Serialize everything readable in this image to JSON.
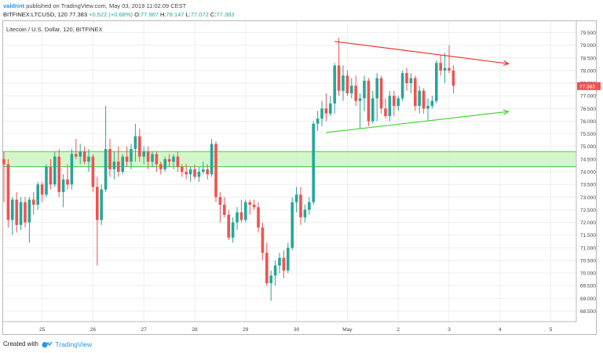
{
  "header": {
    "user": "valdrint",
    "published": "published on TradingView.com, May 03, 2019 11:02:09 CEST",
    "symbol": "BITFINEX:LTCUSD, 120",
    "last": "77.383",
    "change": "+0.522 (+0.68%)",
    "o_label": "O:",
    "o_val": "77.967",
    "h_label": "H:",
    "h_val": "78.147",
    "l_label": "L:",
    "l_val": "77.072",
    "c_label": "C:",
    "c_val": "77.383"
  },
  "footer": {
    "created_with": "Created with",
    "brand": "TradingView"
  },
  "colors": {
    "up": "#26a69a",
    "down": "#ef5350",
    "zone_fill": "#ccf5c2",
    "zone_line": "#2ecc40",
    "red_trend": "#f2352d",
    "green_trend": "#44d62c",
    "price_tag": "#ef5350"
  },
  "chart_data": {
    "type": "candlestick",
    "title": "Litecoin / U.S. Dollar, 120, BITFINEX",
    "x_ticks": [
      "25",
      "26",
      "27",
      "28",
      "29",
      "30",
      "May",
      "2",
      "3",
      "4",
      "5"
    ],
    "y_ticks": [
      "79.500",
      "79.000",
      "78.500",
      "78.000",
      "77.500",
      "77.000",
      "76.500",
      "76.000",
      "75.500",
      "75.000",
      "74.500",
      "74.000",
      "73.500",
      "73.000",
      "72.500",
      "72.000",
      "71.500",
      "71.000",
      "70.500",
      "70.000",
      "69.500",
      "69.000",
      "68.500"
    ],
    "ylim": [
      68.5,
      79.5
    ],
    "last_price": "77.383",
    "support_zone": [
      74.2,
      74.8
    ],
    "candles": [
      {
        "o": 74.5,
        "h": 74.8,
        "l": 72.8,
        "c": 74.3
      },
      {
        "o": 74.3,
        "h": 74.5,
        "l": 71.8,
        "c": 72.1
      },
      {
        "o": 72.1,
        "h": 73.0,
        "l": 71.5,
        "c": 72.9
      },
      {
        "o": 72.9,
        "h": 73.2,
        "l": 71.6,
        "c": 71.9
      },
      {
        "o": 71.9,
        "h": 73.0,
        "l": 71.7,
        "c": 72.8
      },
      {
        "o": 72.8,
        "h": 73.0,
        "l": 71.8,
        "c": 72.0
      },
      {
        "o": 72.0,
        "h": 73.0,
        "l": 71.2,
        "c": 72.9
      },
      {
        "o": 72.9,
        "h": 73.2,
        "l": 72.3,
        "c": 72.7
      },
      {
        "o": 72.7,
        "h": 73.6,
        "l": 72.5,
        "c": 73.5
      },
      {
        "o": 73.5,
        "h": 73.6,
        "l": 72.8,
        "c": 73.1
      },
      {
        "o": 73.1,
        "h": 74.3,
        "l": 73.0,
        "c": 74.2
      },
      {
        "o": 74.2,
        "h": 74.5,
        "l": 73.3,
        "c": 73.5
      },
      {
        "o": 73.5,
        "h": 74.8,
        "l": 73.4,
        "c": 74.6
      },
      {
        "o": 74.6,
        "h": 74.9,
        "l": 73.0,
        "c": 73.2
      },
      {
        "o": 73.2,
        "h": 73.9,
        "l": 72.6,
        "c": 73.7
      },
      {
        "o": 73.7,
        "h": 74.3,
        "l": 73.3,
        "c": 73.5
      },
      {
        "o": 73.5,
        "h": 74.9,
        "l": 73.3,
        "c": 74.7
      },
      {
        "o": 74.7,
        "h": 75.3,
        "l": 74.5,
        "c": 74.6
      },
      {
        "o": 74.6,
        "h": 75.1,
        "l": 74.3,
        "c": 74.8
      },
      {
        "o": 74.8,
        "h": 75.0,
        "l": 74.3,
        "c": 74.4
      },
      {
        "o": 74.4,
        "h": 74.9,
        "l": 74.0,
        "c": 74.6
      },
      {
        "o": 74.6,
        "h": 74.7,
        "l": 73.2,
        "c": 73.4
      },
      {
        "o": 73.4,
        "h": 73.8,
        "l": 70.3,
        "c": 72.1
      },
      {
        "o": 72.1,
        "h": 73.5,
        "l": 71.9,
        "c": 73.3
      },
      {
        "o": 73.3,
        "h": 76.6,
        "l": 73.2,
        "c": 74.9
      },
      {
        "o": 74.9,
        "h": 75.3,
        "l": 73.8,
        "c": 74.1
      },
      {
        "o": 74.1,
        "h": 74.8,
        "l": 73.7,
        "c": 74.4
      },
      {
        "o": 74.4,
        "h": 75.0,
        "l": 73.8,
        "c": 74.0
      },
      {
        "o": 74.0,
        "h": 74.7,
        "l": 73.9,
        "c": 74.6
      },
      {
        "o": 74.6,
        "h": 75.0,
        "l": 74.2,
        "c": 74.4
      },
      {
        "o": 74.4,
        "h": 75.1,
        "l": 74.1,
        "c": 74.9
      },
      {
        "o": 74.9,
        "h": 75.9,
        "l": 74.4,
        "c": 75.4
      },
      {
        "o": 75.4,
        "h": 75.7,
        "l": 74.4,
        "c": 74.6
      },
      {
        "o": 74.6,
        "h": 75.0,
        "l": 74.3,
        "c": 74.8
      },
      {
        "o": 74.8,
        "h": 75.0,
        "l": 74.1,
        "c": 74.4
      },
      {
        "o": 74.4,
        "h": 74.8,
        "l": 74.2,
        "c": 74.7
      },
      {
        "o": 74.7,
        "h": 74.8,
        "l": 74.0,
        "c": 74.3
      },
      {
        "o": 74.3,
        "h": 74.4,
        "l": 73.9,
        "c": 74.1
      },
      {
        "o": 74.1,
        "h": 74.6,
        "l": 74.0,
        "c": 74.5
      },
      {
        "o": 74.5,
        "h": 74.7,
        "l": 74.2,
        "c": 74.4
      },
      {
        "o": 74.4,
        "h": 74.7,
        "l": 74.1,
        "c": 74.6
      },
      {
        "o": 74.6,
        "h": 74.8,
        "l": 74.0,
        "c": 74.2
      },
      {
        "o": 74.2,
        "h": 74.3,
        "l": 73.8,
        "c": 74.0
      },
      {
        "o": 74.0,
        "h": 74.3,
        "l": 73.7,
        "c": 73.9
      },
      {
        "o": 73.9,
        "h": 74.2,
        "l": 73.6,
        "c": 74.1
      },
      {
        "o": 74.1,
        "h": 74.3,
        "l": 73.7,
        "c": 73.8
      },
      {
        "o": 73.8,
        "h": 74.2,
        "l": 73.6,
        "c": 74.0
      },
      {
        "o": 74.0,
        "h": 74.4,
        "l": 73.9,
        "c": 74.1
      },
      {
        "o": 74.1,
        "h": 74.3,
        "l": 73.7,
        "c": 73.9
      },
      {
        "o": 73.9,
        "h": 75.3,
        "l": 73.8,
        "c": 75.1
      },
      {
        "o": 75.1,
        "h": 75.2,
        "l": 72.8,
        "c": 73.0
      },
      {
        "o": 73.0,
        "h": 73.2,
        "l": 72.0,
        "c": 72.7
      },
      {
        "o": 72.7,
        "h": 73.0,
        "l": 72.2,
        "c": 72.3
      },
      {
        "o": 72.3,
        "h": 72.5,
        "l": 71.3,
        "c": 71.4
      },
      {
        "o": 71.4,
        "h": 72.2,
        "l": 71.2,
        "c": 72.0
      },
      {
        "o": 72.0,
        "h": 72.6,
        "l": 71.7,
        "c": 72.4
      },
      {
        "o": 72.4,
        "h": 72.9,
        "l": 72.0,
        "c": 72.1
      },
      {
        "o": 72.1,
        "h": 72.9,
        "l": 72.0,
        "c": 72.8
      },
      {
        "o": 72.8,
        "h": 72.9,
        "l": 72.3,
        "c": 72.7
      },
      {
        "o": 72.7,
        "h": 72.9,
        "l": 72.5,
        "c": 72.6
      },
      {
        "o": 72.6,
        "h": 72.8,
        "l": 71.6,
        "c": 71.8
      },
      {
        "o": 71.8,
        "h": 72.0,
        "l": 70.5,
        "c": 70.8
      },
      {
        "o": 70.8,
        "h": 71.2,
        "l": 69.5,
        "c": 69.6
      },
      {
        "o": 69.6,
        "h": 70.1,
        "l": 68.9,
        "c": 69.9
      },
      {
        "o": 69.9,
        "h": 70.5,
        "l": 69.5,
        "c": 70.3
      },
      {
        "o": 70.3,
        "h": 70.8,
        "l": 70.0,
        "c": 70.6
      },
      {
        "o": 70.6,
        "h": 70.9,
        "l": 69.8,
        "c": 70.1
      },
      {
        "o": 70.1,
        "h": 71.2,
        "l": 70.0,
        "c": 71.0
      },
      {
        "o": 71.0,
        "h": 73.0,
        "l": 70.9,
        "c": 72.8
      },
      {
        "o": 72.8,
        "h": 73.4,
        "l": 72.4,
        "c": 73.1
      },
      {
        "o": 73.1,
        "h": 73.4,
        "l": 71.9,
        "c": 72.2
      },
      {
        "o": 72.2,
        "h": 72.7,
        "l": 72.0,
        "c": 72.5
      },
      {
        "o": 72.5,
        "h": 73.0,
        "l": 72.3,
        "c": 72.8
      },
      {
        "o": 72.8,
        "h": 76.0,
        "l": 72.7,
        "c": 75.9
      },
      {
        "o": 75.9,
        "h": 76.4,
        "l": 75.6,
        "c": 76.1
      },
      {
        "o": 76.1,
        "h": 76.8,
        "l": 75.8,
        "c": 76.5
      },
      {
        "o": 76.5,
        "h": 77.1,
        "l": 76.0,
        "c": 76.3
      },
      {
        "o": 76.3,
        "h": 77.0,
        "l": 76.2,
        "c": 76.7
      },
      {
        "o": 76.7,
        "h": 78.3,
        "l": 76.3,
        "c": 78.2
      },
      {
        "o": 78.2,
        "h": 79.3,
        "l": 77.0,
        "c": 77.2
      },
      {
        "o": 77.2,
        "h": 78.2,
        "l": 76.8,
        "c": 77.8
      },
      {
        "o": 77.8,
        "h": 78.0,
        "l": 77.0,
        "c": 77.1
      },
      {
        "o": 77.1,
        "h": 77.7,
        "l": 76.9,
        "c": 77.4
      },
      {
        "o": 77.4,
        "h": 77.8,
        "l": 76.6,
        "c": 76.8
      },
      {
        "o": 76.8,
        "h": 77.1,
        "l": 75.7,
        "c": 76.9
      },
      {
        "o": 76.9,
        "h": 77.8,
        "l": 76.4,
        "c": 77.6
      },
      {
        "o": 77.6,
        "h": 77.7,
        "l": 75.8,
        "c": 76.0
      },
      {
        "o": 76.0,
        "h": 77.2,
        "l": 75.9,
        "c": 76.9
      },
      {
        "o": 76.9,
        "h": 77.9,
        "l": 76.0,
        "c": 77.7
      },
      {
        "o": 77.7,
        "h": 77.8,
        "l": 76.3,
        "c": 76.5
      },
      {
        "o": 76.5,
        "h": 76.9,
        "l": 76.1,
        "c": 76.2
      },
      {
        "o": 76.2,
        "h": 77.2,
        "l": 76.0,
        "c": 77.0
      },
      {
        "o": 77.0,
        "h": 77.2,
        "l": 76.2,
        "c": 76.6
      },
      {
        "o": 76.6,
        "h": 77.0,
        "l": 76.4,
        "c": 76.9
      },
      {
        "o": 76.9,
        "h": 78.0,
        "l": 76.8,
        "c": 77.9
      },
      {
        "o": 77.9,
        "h": 78.1,
        "l": 77.2,
        "c": 77.5
      },
      {
        "o": 77.5,
        "h": 77.9,
        "l": 77.1,
        "c": 77.7
      },
      {
        "o": 77.7,
        "h": 77.8,
        "l": 76.4,
        "c": 76.6
      },
      {
        "o": 76.6,
        "h": 77.4,
        "l": 76.3,
        "c": 77.2
      },
      {
        "o": 77.2,
        "h": 77.3,
        "l": 76.3,
        "c": 76.5
      },
      {
        "o": 76.5,
        "h": 76.9,
        "l": 76.0,
        "c": 76.6
      },
      {
        "o": 76.6,
        "h": 77.0,
        "l": 76.5,
        "c": 76.8
      },
      {
        "o": 76.8,
        "h": 78.4,
        "l": 76.7,
        "c": 78.3
      },
      {
        "o": 78.3,
        "h": 78.6,
        "l": 77.8,
        "c": 78.0
      },
      {
        "o": 78.0,
        "h": 78.7,
        "l": 77.5,
        "c": 78.1
      },
      {
        "o": 78.1,
        "h": 79.0,
        "l": 77.9,
        "c": 78.0
      },
      {
        "o": 78.0,
        "h": 78.2,
        "l": 77.1,
        "c": 77.4
      }
    ],
    "trendlines": [
      {
        "color": "red",
        "from": [
          78,
          79.15
        ],
        "to": [
          119,
          78.27
        ]
      },
      {
        "color": "green",
        "from": [
          76,
          75.55
        ],
        "to": [
          119,
          76.38
        ]
      }
    ]
  }
}
